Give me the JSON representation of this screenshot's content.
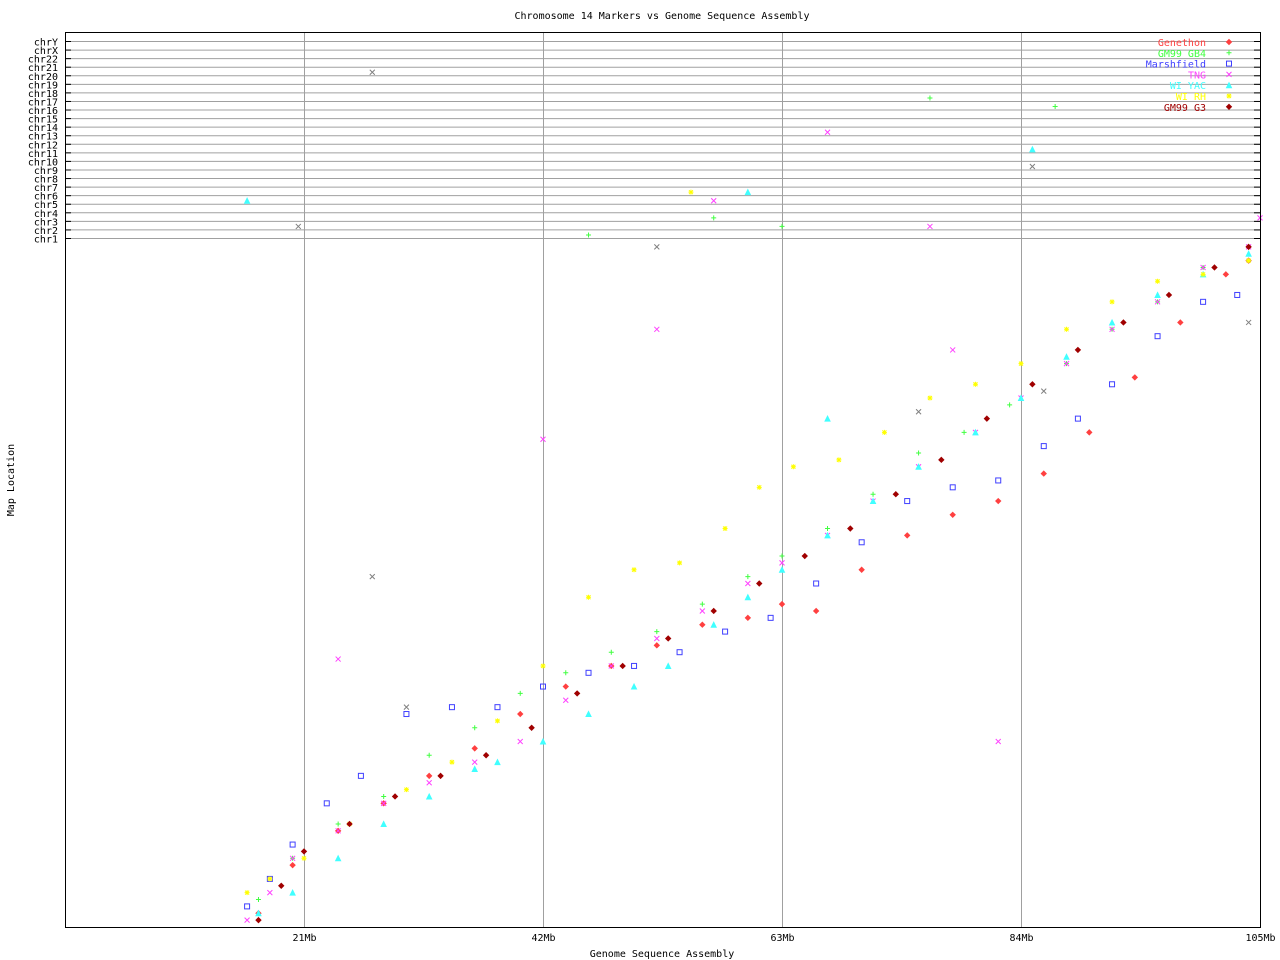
{
  "chart_data": {
    "type": "scatter",
    "title": "Chromosome 14 Markers vs Genome Sequence Assembly",
    "xlabel": "Genome Sequence Assembly",
    "ylabel": "Map Location",
    "xlim": [
      0,
      105
    ],
    "ylim": [
      0,
      100
    ],
    "x_ticks": [
      {
        "v": 21,
        "label": "21Mb"
      },
      {
        "v": 42,
        "label": "42Mb"
      },
      {
        "v": 63,
        "label": "63Mb"
      },
      {
        "v": 84,
        "label": "84Mb"
      },
      {
        "v": 105,
        "label": "105Mb"
      }
    ],
    "chr_labels": [
      "chrY",
      "chrX",
      "chr22",
      "chr21",
      "chr20",
      "chr19",
      "chr18",
      "chr17",
      "chr16",
      "chr15",
      "chr14",
      "chr13",
      "chr12",
      "chr11",
      "chr10",
      "chr9",
      "chr8",
      "chr7",
      "chr6",
      "chr5",
      "chr4",
      "chr3",
      "chr2",
      "chr1"
    ],
    "grid": true,
    "legend": "top-right",
    "series": [
      {
        "name": "Genethon",
        "color": "#ff4040",
        "marker": "diamond",
        "points": [
          [
            17,
            2
          ],
          [
            20,
            9
          ],
          [
            24,
            14
          ],
          [
            28,
            18
          ],
          [
            32,
            22
          ],
          [
            36,
            26
          ],
          [
            40,
            31
          ],
          [
            44,
            35
          ],
          [
            48,
            38
          ],
          [
            52,
            41
          ],
          [
            56,
            44
          ],
          [
            60,
            45
          ],
          [
            63,
            47
          ],
          [
            66,
            46
          ],
          [
            70,
            52
          ],
          [
            74,
            57
          ],
          [
            78,
            60
          ],
          [
            82,
            62
          ],
          [
            86,
            66
          ],
          [
            90,
            72
          ],
          [
            94,
            80
          ],
          [
            98,
            88
          ],
          [
            102,
            95
          ],
          [
            104,
            97
          ]
        ],
        "chr_hits": []
      },
      {
        "name": "GM99 GB4",
        "color": "#40ff40",
        "marker": "plus",
        "points": [
          [
            17,
            4
          ],
          [
            20,
            10
          ],
          [
            24,
            15
          ],
          [
            28,
            19
          ],
          [
            32,
            25
          ],
          [
            36,
            29
          ],
          [
            40,
            34
          ],
          [
            44,
            37
          ],
          [
            48,
            40
          ],
          [
            52,
            43
          ],
          [
            56,
            47
          ],
          [
            60,
            51
          ],
          [
            63,
            54
          ],
          [
            67,
            58
          ],
          [
            71,
            63
          ],
          [
            75,
            69
          ],
          [
            79,
            72
          ],
          [
            83,
            76
          ],
          [
            88,
            82
          ],
          [
            92,
            87
          ],
          [
            96,
            91
          ],
          [
            100,
            96
          ],
          [
            104,
            97
          ]
        ],
        "chr_hits": [
          [
            46,
            "chr1"
          ],
          [
            57,
            "chr3"
          ],
          [
            63,
            "chr2"
          ],
          [
            76,
            "chr17"
          ],
          [
            87,
            "chr16"
          ]
        ]
      },
      {
        "name": "Marshfield",
        "color": "#4040ff",
        "marker": "square",
        "points": [
          [
            16,
            3
          ],
          [
            18,
            7
          ],
          [
            20,
            12
          ],
          [
            23,
            18
          ],
          [
            26,
            22
          ],
          [
            30,
            31
          ],
          [
            34,
            32
          ],
          [
            38,
            32
          ],
          [
            42,
            35
          ],
          [
            46,
            37
          ],
          [
            50,
            38
          ],
          [
            54,
            40
          ],
          [
            58,
            43
          ],
          [
            62,
            45
          ],
          [
            66,
            50
          ],
          [
            70,
            56
          ],
          [
            74,
            62
          ],
          [
            78,
            64
          ],
          [
            82,
            65
          ],
          [
            86,
            70
          ],
          [
            89,
            74
          ],
          [
            92,
            79
          ],
          [
            96,
            86
          ],
          [
            100,
            91
          ],
          [
            103,
            92
          ]
        ],
        "chr_hits": []
      },
      {
        "name": "TNG",
        "color": "#ff40ff",
        "marker": "cross",
        "points": [
          [
            16,
            1
          ],
          [
            18,
            5
          ],
          [
            20,
            10
          ],
          [
            24,
            14
          ],
          [
            28,
            18
          ],
          [
            32,
            21
          ],
          [
            36,
            24
          ],
          [
            40,
            27
          ],
          [
            44,
            33
          ],
          [
            48,
            38
          ],
          [
            52,
            42
          ],
          [
            56,
            46
          ],
          [
            60,
            50
          ],
          [
            63,
            53
          ],
          [
            67,
            57
          ],
          [
            71,
            62
          ],
          [
            75,
            67
          ],
          [
            80,
            72
          ],
          [
            84,
            77
          ],
          [
            88,
            82
          ],
          [
            92,
            87
          ],
          [
            96,
            91
          ],
          [
            100,
            96
          ],
          [
            104,
            99
          ],
          [
            24,
            39
          ],
          [
            42,
            71
          ],
          [
            82,
            27
          ],
          [
            52,
            87
          ],
          [
            78,
            84
          ]
        ],
        "chr_hits": [
          [
            57,
            "chr5"
          ],
          [
            67,
            "chr13"
          ],
          [
            76,
            "chr2"
          ],
          [
            105,
            "chr3"
          ]
        ]
      },
      {
        "name": "WI YAC",
        "color": "#40ffff",
        "marker": "triangle",
        "points": [
          [
            17,
            2
          ],
          [
            20,
            5
          ],
          [
            24,
            10
          ],
          [
            28,
            15
          ],
          [
            32,
            19
          ],
          [
            36,
            23
          ],
          [
            38,
            24
          ],
          [
            42,
            27
          ],
          [
            46,
            31
          ],
          [
            50,
            35
          ],
          [
            53,
            38
          ],
          [
            57,
            44
          ],
          [
            60,
            48
          ],
          [
            63,
            52
          ],
          [
            67,
            57
          ],
          [
            71,
            62
          ],
          [
            75,
            67
          ],
          [
            80,
            72
          ],
          [
            84,
            77
          ],
          [
            88,
            83
          ],
          [
            92,
            88
          ],
          [
            96,
            92
          ],
          [
            100,
            95
          ],
          [
            104,
            98
          ],
          [
            67,
            74
          ]
        ],
        "chr_hits": [
          [
            16,
            "chr5"
          ],
          [
            60,
            "chr6"
          ],
          [
            85,
            "chr11"
          ]
        ]
      },
      {
        "name": "WI RH",
        "color": "#ffff00",
        "marker": "star",
        "points": [
          [
            16,
            5
          ],
          [
            18,
            7
          ],
          [
            21,
            10
          ],
          [
            25,
            15
          ],
          [
            30,
            20
          ],
          [
            34,
            24
          ],
          [
            38,
            30
          ],
          [
            42,
            38
          ],
          [
            46,
            48
          ],
          [
            50,
            52
          ],
          [
            54,
            53
          ],
          [
            58,
            58
          ],
          [
            61,
            64
          ],
          [
            64,
            67
          ],
          [
            68,
            68
          ],
          [
            72,
            72
          ],
          [
            76,
            77
          ],
          [
            80,
            79
          ],
          [
            84,
            82
          ],
          [
            88,
            87
          ],
          [
            92,
            91
          ],
          [
            96,
            94
          ],
          [
            100,
            95
          ],
          [
            104,
            97
          ]
        ],
        "chr_hits": [
          [
            55,
            "chr6"
          ]
        ]
      },
      {
        "name": "GM99 G3",
        "color": "#a00000",
        "marker": "diamond",
        "points": [
          [
            17,
            1
          ],
          [
            19,
            6
          ],
          [
            21,
            11
          ],
          [
            25,
            15
          ],
          [
            29,
            19
          ],
          [
            33,
            22
          ],
          [
            37,
            25
          ],
          [
            41,
            29
          ],
          [
            45,
            34
          ],
          [
            49,
            38
          ],
          [
            53,
            42
          ],
          [
            57,
            46
          ],
          [
            61,
            50
          ],
          [
            65,
            54
          ],
          [
            69,
            58
          ],
          [
            73,
            63
          ],
          [
            77,
            68
          ],
          [
            81,
            74
          ],
          [
            85,
            79
          ],
          [
            89,
            84
          ],
          [
            93,
            88
          ],
          [
            97,
            92
          ],
          [
            101,
            96
          ],
          [
            104,
            99
          ]
        ],
        "chr_hits": []
      },
      {
        "color": "#808080",
        "marker": "cross",
        "points": [
          [
            27,
            51
          ],
          [
            52,
            99
          ],
          [
            104,
            88
          ],
          [
            30,
            32
          ],
          [
            86,
            78
          ],
          [
            75,
            75
          ]
        ],
        "chr_hits": [
          [
            20.5,
            "chr2"
          ],
          [
            27,
            "chr20"
          ],
          [
            85,
            "chr9"
          ]
        ]
      }
    ]
  }
}
